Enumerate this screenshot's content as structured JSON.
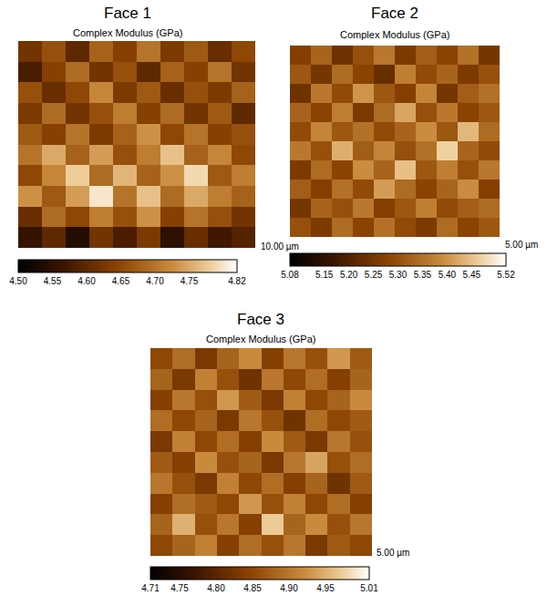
{
  "chart_data": [
    {
      "type": "heatmap",
      "title": "Face 1",
      "subtitle": "Complex Modulus (GPa)",
      "annotations": [
        "10.00 µm"
      ],
      "tick_labels": false,
      "z": [
        [
          4.62,
          4.66,
          4.6,
          4.68,
          4.64,
          4.7,
          4.63,
          4.67,
          4.61,
          4.65
        ],
        [
          4.58,
          4.64,
          4.69,
          4.62,
          4.66,
          4.6,
          4.68,
          4.64,
          4.7,
          4.62
        ],
        [
          4.66,
          4.61,
          4.65,
          4.72,
          4.63,
          4.67,
          4.61,
          4.66,
          4.63,
          4.68
        ],
        [
          4.63,
          4.69,
          4.62,
          4.66,
          4.71,
          4.64,
          4.69,
          4.62,
          4.67,
          4.6
        ],
        [
          4.67,
          4.64,
          4.7,
          4.63,
          4.68,
          4.73,
          4.65,
          4.7,
          4.64,
          4.66
        ],
        [
          4.7,
          4.75,
          4.68,
          4.74,
          4.66,
          4.71,
          4.77,
          4.68,
          4.72,
          4.65
        ],
        [
          4.65,
          4.72,
          4.78,
          4.69,
          4.76,
          4.68,
          4.73,
          4.79,
          4.67,
          4.71
        ],
        [
          4.73,
          4.67,
          4.74,
          4.8,
          4.7,
          4.77,
          4.69,
          4.75,
          4.71,
          4.68
        ],
        [
          4.61,
          4.69,
          4.65,
          4.71,
          4.66,
          4.73,
          4.64,
          4.7,
          4.66,
          4.62
        ],
        [
          4.56,
          4.6,
          4.54,
          4.62,
          4.58,
          4.63,
          4.55,
          4.61,
          4.57,
          4.59
        ]
      ],
      "colorbar": {
        "range": [
          4.5,
          4.82
        ],
        "ticks": [
          {
            "value": 4.5,
            "label": "4.50"
          },
          4.55,
          {
            "value": 4.6,
            "label": "4.60"
          },
          4.65,
          {
            "value": 4.7,
            "label": "4.70"
          },
          4.75,
          4.82
        ]
      }
    },
    {
      "type": "heatmap",
      "title": "Face 2",
      "subtitle": "Complex Modulus (GPa)",
      "annotations": [
        "5.00 µm"
      ],
      "tick_labels": false,
      "z": [
        [
          5.27,
          5.33,
          5.24,
          5.3,
          5.36,
          5.26,
          5.32,
          5.28,
          5.35,
          5.25
        ],
        [
          5.31,
          5.25,
          5.34,
          5.28,
          5.23,
          5.37,
          5.29,
          5.33,
          5.26,
          5.3
        ],
        [
          5.24,
          5.36,
          5.29,
          5.4,
          5.31,
          5.27,
          5.38,
          5.25,
          5.32,
          5.35
        ],
        [
          5.33,
          5.28,
          5.37,
          5.26,
          5.34,
          5.42,
          5.3,
          5.36,
          5.28,
          5.31
        ],
        [
          5.29,
          5.38,
          5.31,
          5.35,
          5.29,
          5.33,
          5.39,
          5.31,
          5.44,
          5.34
        ],
        [
          5.36,
          5.3,
          5.43,
          5.32,
          5.38,
          5.3,
          5.35,
          5.47,
          5.33,
          5.29
        ],
        [
          5.26,
          5.34,
          5.28,
          5.39,
          5.33,
          5.45,
          5.31,
          5.37,
          5.3,
          5.36
        ],
        [
          5.32,
          5.27,
          5.35,
          5.29,
          5.41,
          5.34,
          5.28,
          5.33,
          5.39,
          5.27
        ],
        [
          5.25,
          5.33,
          5.3,
          5.36,
          5.27,
          5.31,
          5.37,
          5.29,
          5.32,
          5.34
        ],
        [
          5.3,
          5.26,
          5.34,
          5.28,
          5.35,
          5.29,
          5.26,
          5.34,
          5.28,
          5.31
        ]
      ],
      "colorbar": {
        "range": [
          5.08,
          5.52
        ],
        "ticks": [
          5.08,
          5.15,
          {
            "value": 5.2,
            "label": "5.20"
          },
          5.25,
          {
            "value": 5.3,
            "label": "5.30"
          },
          5.35,
          {
            "value": 5.4,
            "label": "5.40"
          },
          5.45,
          5.52
        ]
      }
    },
    {
      "type": "heatmap",
      "title": "Face 3",
      "subtitle": "Complex Modulus (GPa)",
      "annotations": [
        "5.00 µm"
      ],
      "tick_labels": false,
      "z": [
        [
          4.85,
          4.89,
          4.83,
          4.88,
          4.92,
          4.84,
          4.9,
          4.86,
          4.93,
          4.87
        ],
        [
          4.88,
          4.83,
          4.91,
          4.86,
          4.82,
          4.9,
          4.85,
          4.89,
          4.84,
          4.88
        ],
        [
          4.84,
          4.9,
          4.86,
          4.93,
          4.87,
          4.83,
          4.91,
          4.85,
          4.88,
          4.92
        ],
        [
          4.89,
          4.85,
          4.88,
          4.83,
          4.9,
          4.86,
          4.82,
          4.89,
          4.85,
          4.87
        ],
        [
          4.83,
          4.91,
          4.85,
          4.89,
          4.84,
          4.92,
          4.87,
          4.83,
          4.9,
          4.86
        ],
        [
          4.87,
          4.84,
          4.92,
          4.86,
          4.88,
          4.83,
          4.9,
          4.94,
          4.86,
          4.89
        ],
        [
          4.9,
          4.86,
          4.83,
          4.91,
          4.85,
          4.89,
          4.84,
          4.88,
          4.82,
          4.87
        ],
        [
          4.84,
          4.89,
          4.87,
          4.85,
          4.93,
          4.86,
          4.91,
          4.85,
          4.89,
          4.84
        ],
        [
          4.88,
          4.95,
          4.86,
          4.9,
          4.84,
          4.97,
          4.88,
          4.92,
          4.86,
          4.9
        ],
        [
          4.85,
          4.88,
          4.91,
          4.84,
          4.89,
          4.86,
          4.9,
          4.83,
          4.87,
          4.85
        ]
      ],
      "colorbar": {
        "range": [
          4.71,
          5.01
        ],
        "ticks": [
          4.71,
          4.75,
          {
            "value": 4.8,
            "label": "4.80"
          },
          4.85,
          {
            "value": 4.9,
            "label": "4.90"
          },
          4.95,
          5.01
        ]
      }
    }
  ]
}
